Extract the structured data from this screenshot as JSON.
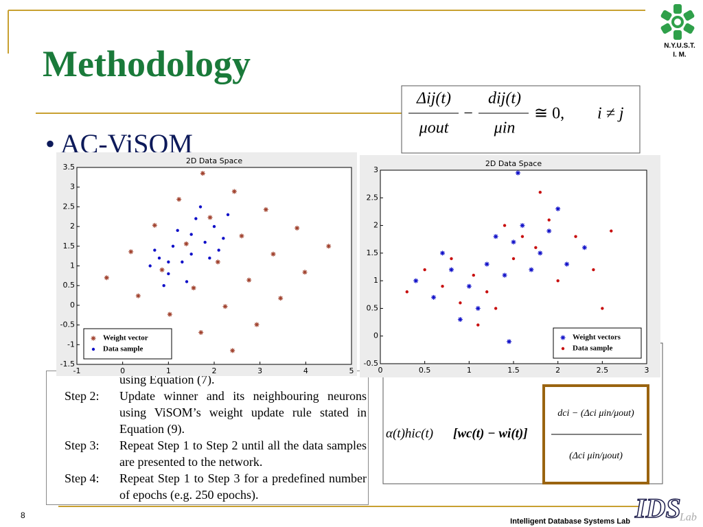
{
  "slide": {
    "title": "Methodology",
    "bullet": "AC-ViSOM",
    "logo_top": [
      "N.Y.U.S.T.",
      "I. M."
    ],
    "logo_bottom": [
      "IDS",
      "Lab"
    ],
    "page_number": "8",
    "footer": "Intelligent Database Systems Lab",
    "equation1": {
      "num1": "Δij(t)",
      "den1": "μout",
      "minus": "−",
      "num2": "dij(t)",
      "den2": "μin",
      "relation": "≅ 0,",
      "condition": "i ≠ j"
    },
    "equation2": {
      "factor": "α(t)hic(t)",
      "difference": "[wc(t) − wi(t)]",
      "box_numerator": "dci − (Δci μin/μout)",
      "box_denominator": "(Δci μin/μout)"
    },
    "steps_fragment": "using Equation (7).",
    "steps": [
      {
        "label": "Step 2:",
        "text": "Update winner and its neighbouring neurons using ViSOM’s weight update rule stated in Equation (9)."
      },
      {
        "label": "Step 3:",
        "text": "Repeat Step 1 to Step 2 until all the data samples are presented to the network."
      },
      {
        "label": "Step 4:",
        "text": "Repeat Step 1 to Step 3 for a predefined number of epochs (e.g. 250 epochs)."
      }
    ]
  },
  "chart_data": [
    {
      "type": "scatter",
      "title": "2D Data Space",
      "xlim": [
        -1,
        5
      ],
      "xticks": [
        -1,
        0,
        1,
        2,
        3,
        4,
        5
      ],
      "ylim": [
        -1.5,
        3.5
      ],
      "yticks": [
        -1.5,
        -1,
        -0.5,
        0,
        0.5,
        1,
        1.5,
        2,
        2.5,
        3,
        3.5
      ],
      "legend": "lower left",
      "series": [
        {
          "name": "Weight vector",
          "color": "#a0412d",
          "marker": "star",
          "x": [
            -0.35,
            0.34,
            1.03,
            1.71,
            2.4,
            0.18,
            0.86,
            1.55,
            2.24,
            2.93,
            0.7,
            1.39,
            2.08,
            2.76,
            3.45,
            1.23,
            1.91,
            2.6,
            3.29,
            3.98,
            1.75,
            2.44,
            3.13,
            3.81,
            4.5
          ],
          "values": [
            0.7,
            0.24,
            -0.23,
            -0.69,
            -1.15,
            1.36,
            0.9,
            0.44,
            -0.03,
            -0.49,
            2.03,
            1.56,
            1.1,
            0.64,
            0.18,
            2.69,
            2.23,
            1.76,
            1.3,
            0.84,
            3.35,
            2.89,
            2.43,
            1.96,
            1.5
          ]
        },
        {
          "name": "Data sample",
          "color": "#1010c8",
          "marker": "dot",
          "x": [
            0.6,
            0.8,
            1.0,
            1.1,
            1.3,
            1.5,
            1.6,
            1.8,
            2.0,
            2.2,
            1.4,
            0.9,
            1.2,
            1.9,
            2.3,
            1.7,
            0.7,
            2.1,
            1.0,
            1.5
          ],
          "values": [
            1.0,
            1.2,
            0.8,
            1.5,
            1.1,
            1.8,
            2.2,
            1.6,
            2.0,
            1.7,
            0.6,
            0.5,
            1.9,
            1.2,
            2.3,
            2.5,
            1.4,
            1.4,
            1.1,
            1.3
          ]
        }
      ]
    },
    {
      "type": "scatter",
      "title": "2D Data Space",
      "xlim": [
        0,
        3
      ],
      "xticks": [
        0,
        0.5,
        1,
        1.5,
        2,
        2.5,
        3
      ],
      "ylim": [
        -0.5,
        3
      ],
      "yticks": [
        -0.5,
        0,
        0.5,
        1,
        1.5,
        2,
        2.5,
        3
      ],
      "legend": "lower right",
      "series": [
        {
          "name": "Weight vectors",
          "color": "#1010c8",
          "marker": "star",
          "x": [
            0.4,
            0.6,
            0.8,
            1.0,
            1.1,
            1.2,
            0.9,
            1.4,
            1.5,
            1.6,
            1.8,
            1.9,
            2.1,
            2.0,
            1.7,
            1.3,
            2.3,
            0.7,
            1.45,
            1.55
          ],
          "values": [
            1.0,
            0.7,
            1.2,
            0.9,
            0.5,
            1.3,
            0.3,
            1.1,
            1.7,
            2.0,
            1.5,
            1.9,
            1.3,
            2.3,
            1.2,
            1.8,
            1.6,
            1.5,
            -0.1,
            2.95
          ]
        },
        {
          "name": "Data sample",
          "color": "#c81010",
          "marker": "dot",
          "x": [
            0.5,
            0.7,
            0.9,
            1.05,
            1.2,
            0.8,
            1.3,
            1.5,
            1.6,
            1.75,
            1.9,
            2.0,
            2.2,
            1.8,
            1.4,
            2.4,
            0.3,
            2.6,
            1.1,
            2.5
          ],
          "values": [
            1.2,
            0.9,
            0.6,
            1.1,
            0.8,
            1.4,
            0.5,
            1.4,
            1.8,
            1.6,
            2.1,
            1.0,
            1.8,
            2.6,
            2.0,
            1.2,
            0.8,
            1.9,
            0.2,
            0.5
          ]
        }
      ]
    }
  ]
}
